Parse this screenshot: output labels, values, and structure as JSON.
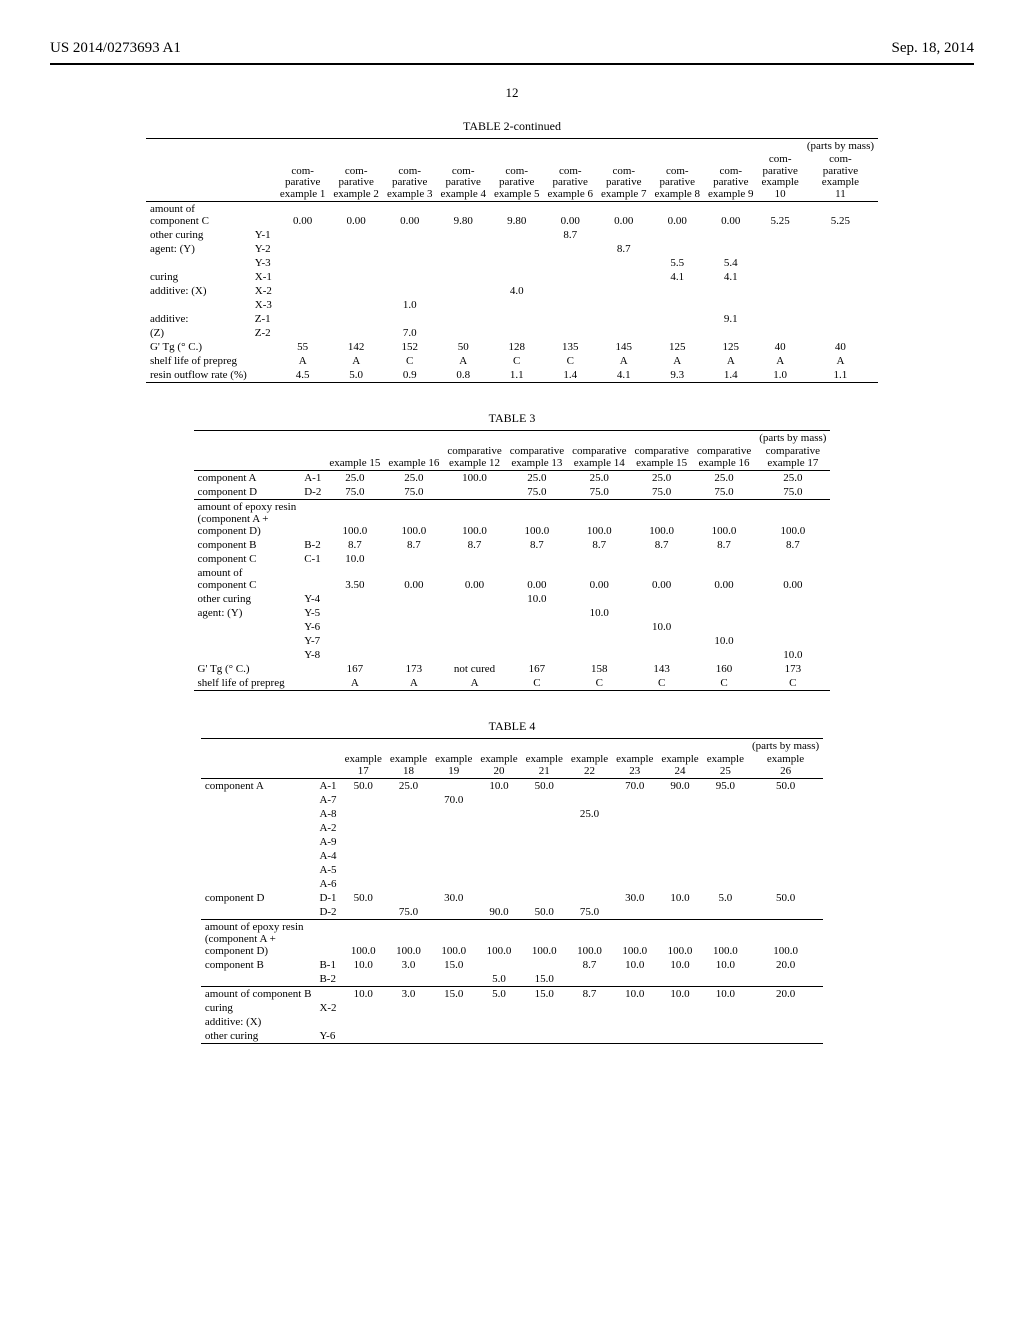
{
  "header": {
    "pub_no": "US 2014/0273693 A1",
    "date": "Sep. 18, 2014",
    "page_no": "12"
  },
  "table2": {
    "title": "TABLE 2-continued",
    "units_note_top": "(parts by mass)",
    "col_headers": [
      "com-\nparative\nexample 1",
      "com-\nparative\nexample 2",
      "com-\nparative\nexample 3",
      "com-\nparative\nexample 4",
      "com-\nparative\nexample 5",
      "com-\nparative\nexample 6",
      "com-\nparative\nexample 7",
      "com-\nparative\nexample 8",
      "com-\nparative\nexample 9",
      "com-\nparative\nexample\n10",
      "com-\nparative\nexample\n11"
    ],
    "rows": [
      {
        "label": "amount of\ncomponent C",
        "sub": "",
        "vals": [
          "0.00",
          "0.00",
          "0.00",
          "9.80",
          "9.80",
          "0.00",
          "0.00",
          "0.00",
          "0.00",
          "5.25",
          "5.25"
        ]
      },
      {
        "label": "other curing",
        "sub": "Y-1",
        "vals": [
          "",
          "",
          "",
          "",
          "",
          "8.7",
          "",
          "",
          "",
          "",
          ""
        ]
      },
      {
        "label": "agent: (Y)",
        "sub": "Y-2",
        "vals": [
          "",
          "",
          "",
          "",
          "",
          "",
          "8.7",
          "",
          "",
          "",
          ""
        ]
      },
      {
        "label": "",
        "sub": "Y-3",
        "vals": [
          "",
          "",
          "",
          "",
          "",
          "",
          "",
          "5.5",
          "5.4",
          "",
          ""
        ]
      },
      {
        "label": "curing",
        "sub": "X-1",
        "vals": [
          "",
          "",
          "",
          "",
          "",
          "",
          "",
          "4.1",
          "4.1",
          "",
          ""
        ]
      },
      {
        "label": "additive: (X)",
        "sub": "X-2",
        "vals": [
          "",
          "",
          "",
          "",
          "4.0",
          "",
          "",
          "",
          "",
          "",
          ""
        ]
      },
      {
        "label": "",
        "sub": "X-3",
        "vals": [
          "",
          "",
          "1.0",
          "",
          "",
          "",
          "",
          "",
          "",
          "",
          ""
        ]
      },
      {
        "label": "additive:",
        "sub": "Z-1",
        "vals": [
          "",
          "",
          "",
          "",
          "",
          "",
          "",
          "",
          "9.1",
          "",
          ""
        ]
      },
      {
        "label": "(Z)",
        "sub": "Z-2",
        "vals": [
          "",
          "",
          "7.0",
          "",
          "",
          "",
          "",
          "",
          "",
          "",
          ""
        ]
      },
      {
        "label": "G' Tg (° C.)",
        "sub": "",
        "vals": [
          "55",
          "142",
          "152",
          "50",
          "128",
          "135",
          "145",
          "125",
          "125",
          "40",
          "40"
        ]
      },
      {
        "label": "shelf life of prepreg",
        "sub": "",
        "vals": [
          "A",
          "A",
          "C",
          "A",
          "C",
          "C",
          "A",
          "A",
          "A",
          "A",
          "A"
        ]
      },
      {
        "label": "resin outflow rate (%)",
        "sub": "",
        "vals": [
          "4.5",
          "5.0",
          "0.9",
          "0.8",
          "1.1",
          "1.4",
          "4.1",
          "9.3",
          "1.4",
          "1.0",
          "1.1"
        ]
      }
    ]
  },
  "table3": {
    "title": "TABLE 3",
    "units_note_top": "(parts by mass)",
    "col_headers": [
      "example 15",
      "example 16",
      "comparative\nexample 12",
      "comparative\nexample 13",
      "comparative\nexample 14",
      "comparative\nexample 15",
      "comparative\nexample 16",
      "comparative\nexample 17"
    ],
    "rows": [
      {
        "label": "component A",
        "sub": "A-1",
        "vals": [
          "25.0",
          "25.0",
          "100.0",
          "25.0",
          "25.0",
          "25.0",
          "25.0",
          "25.0"
        ]
      },
      {
        "label": "component D",
        "sub": "D-2",
        "vals": [
          "75.0",
          "75.0",
          "",
          "75.0",
          "75.0",
          "75.0",
          "75.0",
          "75.0"
        ]
      },
      {
        "label": "amount of epoxy resin\n(component A +\ncomponent D)",
        "sub": "",
        "vals": [
          "100.0",
          "100.0",
          "100.0",
          "100.0",
          "100.0",
          "100.0",
          "100.0",
          "100.0"
        ],
        "sep_above": true
      },
      {
        "label": "component B",
        "sub": "B-2",
        "vals": [
          "8.7",
          "8.7",
          "8.7",
          "8.7",
          "8.7",
          "8.7",
          "8.7",
          "8.7"
        ]
      },
      {
        "label": "component C",
        "sub": "C-1",
        "vals": [
          "10.0",
          "",
          "",
          "",
          "",
          "",
          "",
          ""
        ]
      },
      {
        "label": "amount of\ncomponent C",
        "sub": "",
        "vals": [
          "3.50",
          "0.00",
          "0.00",
          "0.00",
          "0.00",
          "0.00",
          "0.00",
          "0.00"
        ]
      },
      {
        "label": "other curing",
        "sub": "Y-4",
        "vals": [
          "",
          "",
          "",
          "10.0",
          "",
          "",
          "",
          ""
        ]
      },
      {
        "label": "agent: (Y)",
        "sub": "Y-5",
        "vals": [
          "",
          "",
          "",
          "",
          "10.0",
          "",
          "",
          ""
        ]
      },
      {
        "label": "",
        "sub": "Y-6",
        "vals": [
          "",
          "",
          "",
          "",
          "",
          "10.0",
          "",
          ""
        ]
      },
      {
        "label": "",
        "sub": "Y-7",
        "vals": [
          "",
          "",
          "",
          "",
          "",
          "",
          "10.0",
          ""
        ]
      },
      {
        "label": "",
        "sub": "Y-8",
        "vals": [
          "",
          "",
          "",
          "",
          "",
          "",
          "",
          "10.0"
        ]
      },
      {
        "label": "G' Tg (° C.)",
        "sub": "",
        "vals": [
          "167",
          "173",
          "not cured",
          "167",
          "158",
          "143",
          "160",
          "173"
        ]
      },
      {
        "label": "shelf life of prepreg",
        "sub": "",
        "vals": [
          "A",
          "A",
          "A",
          "C",
          "C",
          "C",
          "C",
          "C"
        ]
      }
    ]
  },
  "table4": {
    "title": "TABLE 4",
    "units_note_top": "(parts by mass)",
    "col_headers": [
      "example\n17",
      "example\n18",
      "example\n19",
      "example\n20",
      "example\n21",
      "example\n22",
      "example\n23",
      "example\n24",
      "example\n25",
      "example\n26"
    ],
    "rows": [
      {
        "label": "component A",
        "sub": "A-1",
        "vals": [
          "50.0",
          "25.0",
          "",
          "10.0",
          "50.0",
          "",
          "70.0",
          "90.0",
          "95.0",
          "50.0"
        ]
      },
      {
        "label": "",
        "sub": "A-7",
        "vals": [
          "",
          "",
          "70.0",
          "",
          "",
          "",
          "",
          "",
          "",
          ""
        ]
      },
      {
        "label": "",
        "sub": "A-8",
        "vals": [
          "",
          "",
          "",
          "",
          "",
          "25.0",
          "",
          "",
          "",
          ""
        ]
      },
      {
        "label": "",
        "sub": "A-2",
        "vals": [
          "",
          "",
          "",
          "",
          "",
          "",
          "",
          "",
          "",
          ""
        ]
      },
      {
        "label": "",
        "sub": "A-9",
        "vals": [
          "",
          "",
          "",
          "",
          "",
          "",
          "",
          "",
          "",
          ""
        ]
      },
      {
        "label": "",
        "sub": "A-4",
        "vals": [
          "",
          "",
          "",
          "",
          "",
          "",
          "",
          "",
          "",
          ""
        ]
      },
      {
        "label": "",
        "sub": "A-5",
        "vals": [
          "",
          "",
          "",
          "",
          "",
          "",
          "",
          "",
          "",
          ""
        ]
      },
      {
        "label": "",
        "sub": "A-6",
        "vals": [
          "",
          "",
          "",
          "",
          "",
          "",
          "",
          "",
          "",
          ""
        ]
      },
      {
        "label": "component D",
        "sub": "D-1",
        "vals": [
          "50.0",
          "",
          "30.0",
          "",
          "",
          "",
          "30.0",
          "10.0",
          "5.0",
          "50.0"
        ]
      },
      {
        "label": "",
        "sub": "D-2",
        "vals": [
          "",
          "75.0",
          "",
          "90.0",
          "50.0",
          "75.0",
          "",
          "",
          "",
          ""
        ]
      },
      {
        "label": "amount of epoxy resin\n(component A +\ncomponent D)",
        "sub": "",
        "vals": [
          "100.0",
          "100.0",
          "100.0",
          "100.0",
          "100.0",
          "100.0",
          "100.0",
          "100.0",
          "100.0",
          "100.0"
        ],
        "sep_above": true
      },
      {
        "label": "component B",
        "sub": "B-1",
        "vals": [
          "10.0",
          "3.0",
          "15.0",
          "",
          "",
          "8.7",
          "10.0",
          "10.0",
          "10.0",
          "20.0"
        ]
      },
      {
        "label": "",
        "sub": "B-2",
        "vals": [
          "",
          "",
          "",
          "5.0",
          "15.0",
          "",
          "",
          "",
          "",
          ""
        ]
      },
      {
        "label": "amount of component B",
        "sub": "",
        "vals": [
          "10.0",
          "3.0",
          "15.0",
          "5.0",
          "15.0",
          "8.7",
          "10.0",
          "10.0",
          "10.0",
          "20.0"
        ],
        "sep_above": true
      },
      {
        "label": "curing",
        "sub": "X-2",
        "vals": [
          "",
          "",
          "",
          "",
          "",
          "",
          "",
          "",
          "",
          ""
        ]
      },
      {
        "label": "additive: (X)",
        "sub": "",
        "vals": [
          "",
          "",
          "",
          "",
          "",
          "",
          "",
          "",
          "",
          ""
        ]
      },
      {
        "label": "other curing",
        "sub": "Y-6",
        "vals": [
          "",
          "",
          "",
          "",
          "",
          "",
          "",
          "",
          "",
          ""
        ]
      }
    ]
  }
}
